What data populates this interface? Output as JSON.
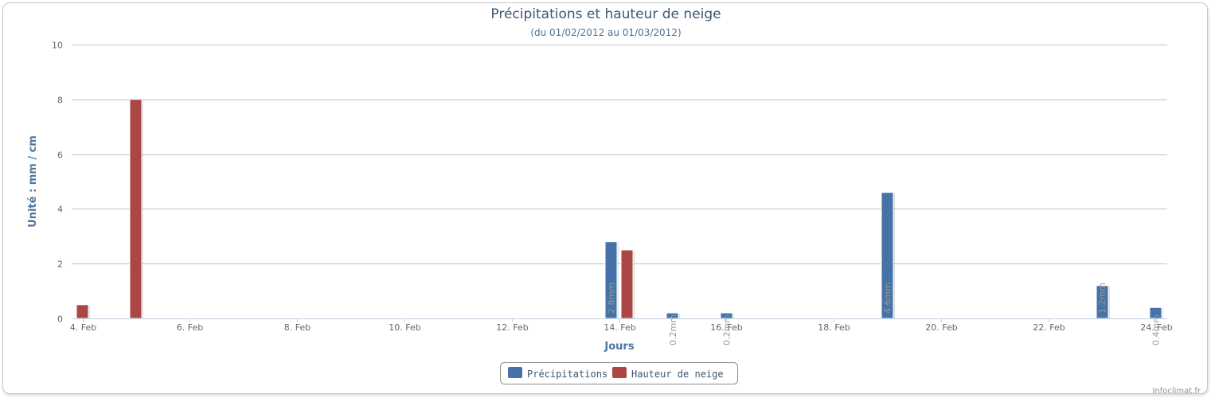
{
  "chart_data": {
    "type": "bar",
    "title": "Précipitations et hauteur de neige",
    "subtitle": "(du 01/02/2012 au 01/03/2012)",
    "xlabel": "Jours",
    "ylabel": "Unité : mm / cm",
    "ylim": [
      0,
      10
    ],
    "yticks": [
      "0",
      "2",
      "4",
      "6",
      "8",
      "10"
    ],
    "xlim": [
      "4. Feb",
      "24. Feb"
    ],
    "xticks": [
      "4. Feb",
      "6. Feb",
      "8. Feb",
      "10. Feb",
      "12. Feb",
      "14. Feb",
      "16. Feb",
      "18. Feb",
      "20. Feb",
      "22. Feb",
      "24. Feb"
    ],
    "grid": true,
    "legend_position": "bottom-center",
    "series": [
      {
        "name": "Précipitations",
        "color": "#4572a7",
        "points": [
          {
            "x": "14. Feb",
            "y": 2.8,
            "label": "2.8mm"
          },
          {
            "x": "15. Feb",
            "y": 0.2,
            "label": "0.2mm"
          },
          {
            "x": "16. Feb",
            "y": 0.2,
            "label": "0.2mm"
          },
          {
            "x": "19. Feb",
            "y": 4.6,
            "label": "4.6mm"
          },
          {
            "x": "23. Feb",
            "y": 1.2,
            "label": "1.2mm"
          },
          {
            "x": "24. Feb",
            "y": 0.4,
            "label": "0.4mm"
          }
        ]
      },
      {
        "name": "Hauteur de neige",
        "color": "#aa4643",
        "points": [
          {
            "x": "4. Feb",
            "y": 0.5
          },
          {
            "x": "5. Feb",
            "y": 8
          },
          {
            "x": "14. Feb",
            "y": 2.5
          }
        ]
      }
    ],
    "credit": "Infoclimat.fr"
  }
}
